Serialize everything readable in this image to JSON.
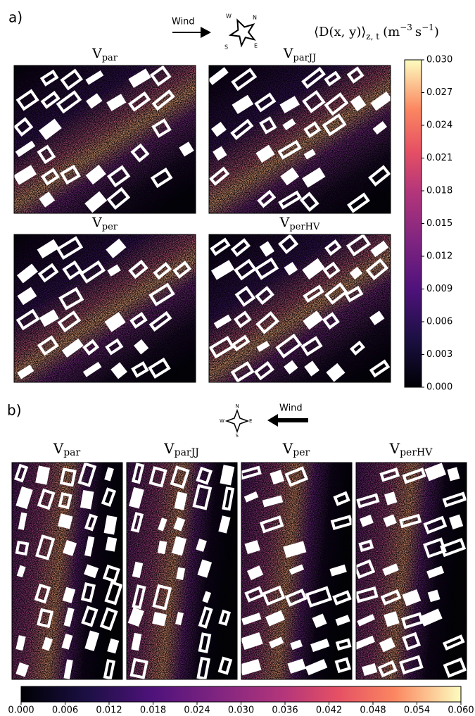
{
  "panel_a": {
    "label": "a)",
    "wind": "Wind",
    "compass": {
      "n": "N",
      "e": "E",
      "s": "S",
      "w": "W"
    },
    "colorbar_label": {
      "text": "⟨D(x, y)⟩",
      "sub": "z, t",
      "unit_m": "(m",
      "exp_m": "−3",
      "unit_s": "s",
      "exp_s": "−1",
      "close": ")"
    },
    "maps": [
      {
        "main": "V",
        "sub": "par"
      },
      {
        "main": "V",
        "sub": "parJJ"
      },
      {
        "main": "V",
        "sub": "per"
      },
      {
        "main": "V",
        "sub": "perHV"
      }
    ],
    "colorbar": {
      "lim": [
        0,
        0.03
      ],
      "ticks": [
        {
          "value": 0,
          "label": "0.000"
        },
        {
          "value": 0.003,
          "label": "0.003"
        },
        {
          "value": 0.006,
          "label": "0.006"
        },
        {
          "value": 0.009,
          "label": "0.009"
        },
        {
          "value": 0.012,
          "label": "0.012"
        },
        {
          "value": 0.015,
          "label": "0.015"
        },
        {
          "value": 0.018,
          "label": "0.018"
        },
        {
          "value": 0.021,
          "label": "0.021"
        },
        {
          "value": 0.024,
          "label": "0.024"
        },
        {
          "value": 0.027,
          "label": "0.027"
        },
        {
          "value": 0.03,
          "label": "0.030"
        }
      ]
    }
  },
  "panel_b": {
    "label": "b)",
    "wind": "Wind",
    "compass": {
      "n": "N",
      "e": "E",
      "s": "S",
      "w": "W"
    },
    "maps": [
      {
        "main": "V",
        "sub": "par"
      },
      {
        "main": "V",
        "sub": "parJJ"
      },
      {
        "main": "V",
        "sub": "per"
      },
      {
        "main": "V",
        "sub": "perHV"
      }
    ],
    "colorbar": {
      "lim": [
        0,
        0.06
      ],
      "ticks": [
        {
          "value": 0,
          "label": "0.000"
        },
        {
          "value": 0.006,
          "label": "0.006"
        },
        {
          "value": 0.012,
          "label": "0.012"
        },
        {
          "value": 0.018,
          "label": "0.018"
        },
        {
          "value": 0.024,
          "label": "0.024"
        },
        {
          "value": 0.03,
          "label": "0.030"
        },
        {
          "value": 0.036,
          "label": "0.036"
        },
        {
          "value": 0.042,
          "label": "0.042"
        },
        {
          "value": 0.048,
          "label": "0.048"
        },
        {
          "value": 0.054,
          "label": "0.054"
        },
        {
          "value": 0.06,
          "label": "0.060"
        }
      ]
    }
  }
}
